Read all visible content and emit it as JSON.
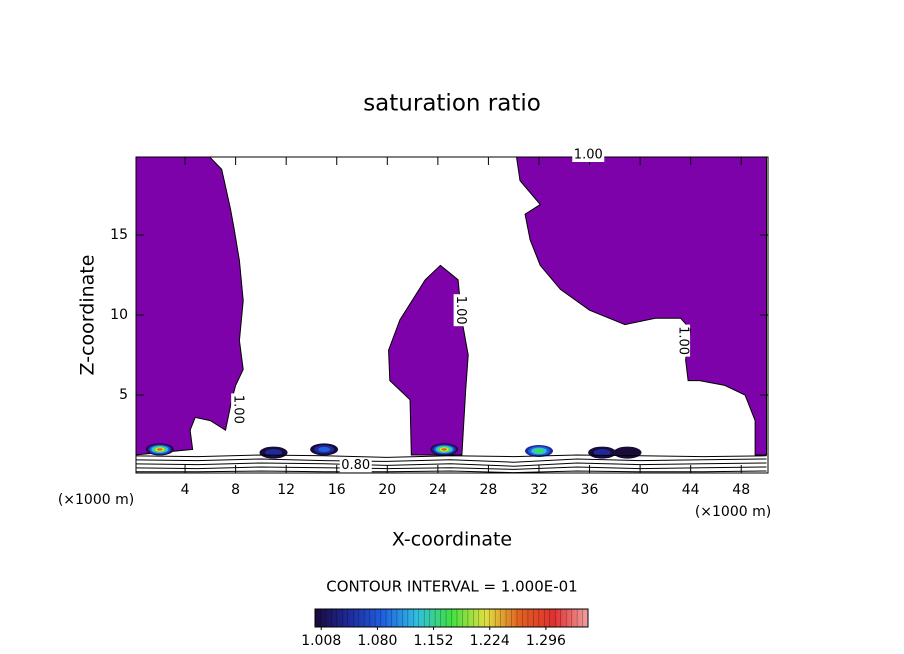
{
  "chart_data": {
    "type": "contour",
    "title": "saturation ratio",
    "xlabel": "X-coordinate",
    "ylabel": "Z-coordinate",
    "xunit": "(×1000 m)",
    "xunit_right": "(×1000 m)",
    "contour_interval": "CONTOUR INTERVAL = 1.000E-01",
    "xlim": [
      0,
      50
    ],
    "ylim": [
      0,
      20
    ],
    "xticks": [
      4,
      8,
      12,
      16,
      20,
      24,
      28,
      32,
      36,
      40,
      44,
      48
    ],
    "yticks": [
      5,
      10,
      15
    ],
    "region_color": "#7d02aa",
    "regions": [
      {
        "x": [
          0,
          5.8,
          6.9,
          7.6,
          7.9,
          8.3,
          8.6,
          8.3,
          8.6,
          8.0,
          7.7,
          7.2,
          6.0,
          4.8,
          4.4,
          4.6,
          0
        ],
        "y": [
          20,
          20,
          19.1,
          16.6,
          15.3,
          13.4,
          10.9,
          8.4,
          6.6,
          5.6,
          4.7,
          2.8,
          3.4,
          3.6,
          2.8,
          1.6,
          1.25
        ]
      },
      {
        "x": [
          24.2,
          25.6,
          25.9,
          26.4,
          26.2,
          25.9,
          21.9,
          21.8,
          20.2,
          20.1,
          21.0,
          23.0,
          24.2
        ],
        "y": [
          13.1,
          12.2,
          9.7,
          7.5,
          5.3,
          1.25,
          1.25,
          4.7,
          5.9,
          7.8,
          9.7,
          12.2,
          13.1
        ]
      },
      {
        "x": [
          30.2,
          50,
          50,
          49.1,
          49.1,
          48.3,
          46.7,
          44.7,
          43.8,
          43.6,
          44.0,
          43.2,
          41.2,
          38.8,
          36.0,
          33.7,
          32.1,
          31.3,
          30.9,
          32.1,
          30.5
        ],
        "y": [
          20,
          20,
          1.25,
          1.25,
          3.4,
          5.0,
          5.6,
          5.9,
          5.9,
          7.2,
          9.1,
          9.8,
          9.8,
          9.4,
          10.3,
          11.6,
          13.1,
          14.7,
          16.3,
          16.9,
          18.4
        ]
      }
    ],
    "maxima": [
      {
        "x": 2.0,
        "y": 1.6,
        "value": 1.3
      },
      {
        "x": 11.0,
        "y": 1.4,
        "value": 1.05
      },
      {
        "x": 15.0,
        "y": 1.6,
        "value": 1.1
      },
      {
        "x": 24.5,
        "y": 1.6,
        "value": 1.3
      },
      {
        "x": 32.0,
        "y": 1.5,
        "value": 1.2
      },
      {
        "x": 37.0,
        "y": 1.4,
        "value": 1.05
      },
      {
        "x": 39.0,
        "y": 1.4,
        "value": 1.02
      }
    ],
    "contour_lines": [
      {
        "x": [
          0,
          5,
          10,
          15,
          20,
          25,
          30,
          35,
          40,
          45,
          50
        ],
        "y": [
          1.2,
          1.15,
          1.25,
          1.2,
          1.1,
          1.2,
          1.15,
          1.25,
          1.2,
          1.15,
          1.2
        ]
      },
      {
        "x": [
          0,
          5,
          10,
          15,
          20,
          25,
          30,
          35,
          40,
          45,
          50
        ],
        "y": [
          0.95,
          0.9,
          1.0,
          0.9,
          0.85,
          0.95,
          0.8,
          1.0,
          0.9,
          0.95,
          1.0
        ]
      },
      {
        "x": [
          0,
          5,
          10,
          15,
          20,
          25,
          30,
          35,
          40,
          45,
          50
        ],
        "y": [
          0.7,
          0.65,
          0.75,
          0.7,
          0.6,
          0.7,
          0.55,
          0.75,
          0.65,
          0.7,
          0.75
        ]
      },
      {
        "x": [
          0,
          5,
          10,
          15,
          20,
          25,
          30,
          35,
          40,
          45,
          50
        ],
        "y": [
          0.45,
          0.4,
          0.5,
          0.45,
          0.4,
          0.45,
          0.35,
          0.5,
          0.4,
          0.45,
          0.5
        ]
      },
      {
        "x": [
          0,
          5,
          10,
          15,
          20,
          25,
          30,
          35,
          40,
          45,
          50
        ],
        "y": [
          0.2,
          0.2,
          0.25,
          0.2,
          0.2,
          0.25,
          0.15,
          0.25,
          0.2,
          0.2,
          0.25
        ]
      }
    ],
    "contour_labels": [
      {
        "text": "1.00",
        "x": 35.9,
        "y": 20,
        "orientation": "horizontal"
      },
      {
        "text": "1.00",
        "x": 25.8,
        "y": 10.3,
        "orientation": "vertical"
      },
      {
        "text": "1.00",
        "x": 43.4,
        "y": 8.4,
        "orientation": "vertical"
      },
      {
        "text": "1.00",
        "x": 8.2,
        "y": 4.1,
        "orientation": "vertical"
      },
      {
        "text": "0.80",
        "x": 17.5,
        "y": 0.6,
        "orientation": "horizontal"
      }
    ],
    "colorbar": {
      "lim": [
        1.0,
        1.35
      ],
      "ticks": [
        1.008,
        {
          "value": 1.08,
          "label": "1.080"
        },
        1.152,
        1.224,
        1.296
      ],
      "colors": [
        "#1a0a3a",
        "#1e2a9a",
        "#2060e0",
        "#30c0e0",
        "#40e040",
        "#e0e040",
        "#e06020",
        "#e03030",
        "#f0a0a0"
      ]
    }
  }
}
